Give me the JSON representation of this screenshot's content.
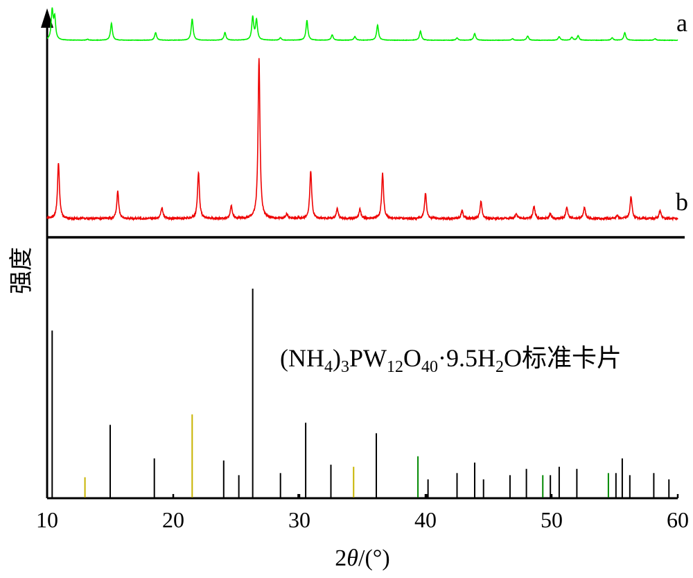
{
  "chart_data": {
    "type": "line",
    "xlabel_parts": [
      "2",
      "θ",
      "/(°)"
    ],
    "ylabel": "强度",
    "xlim": [
      10,
      60
    ],
    "xticks": [
      10,
      20,
      30,
      40,
      50,
      60
    ],
    "series": [
      {
        "name": "a",
        "color": "#00ee00",
        "baseline": 0.05,
        "peaks": [
          [
            10.4,
            0.95
          ],
          [
            10.6,
            0.7
          ],
          [
            13.2,
            0.03
          ],
          [
            15.1,
            0.55
          ],
          [
            18.6,
            0.25
          ],
          [
            21.5,
            0.7
          ],
          [
            24.1,
            0.25
          ],
          [
            26.3,
            0.75
          ],
          [
            26.6,
            0.65
          ],
          [
            28.5,
            0.08
          ],
          [
            30.6,
            0.65
          ],
          [
            32.6,
            0.18
          ],
          [
            34.4,
            0.12
          ],
          [
            36.2,
            0.5
          ],
          [
            39.6,
            0.3
          ],
          [
            42.5,
            0.08
          ],
          [
            43.9,
            0.22
          ],
          [
            46.9,
            0.05
          ],
          [
            48.1,
            0.14
          ],
          [
            50.6,
            0.12
          ],
          [
            51.6,
            0.1
          ],
          [
            52.1,
            0.15
          ],
          [
            54.8,
            0.08
          ],
          [
            55.8,
            0.25
          ],
          [
            58.2,
            0.05
          ]
        ]
      },
      {
        "name": "b",
        "color": "#ee0000",
        "baseline": 0.05,
        "peaks": [
          [
            10.9,
            0.35
          ],
          [
            15.6,
            0.17
          ],
          [
            19.1,
            0.07
          ],
          [
            22.0,
            0.29
          ],
          [
            24.6,
            0.08
          ],
          [
            26.8,
            1.0
          ],
          [
            29.0,
            0.03
          ],
          [
            30.9,
            0.3
          ],
          [
            33.0,
            0.06
          ],
          [
            34.8,
            0.06
          ],
          [
            36.6,
            0.28
          ],
          [
            40.0,
            0.16
          ],
          [
            42.9,
            0.05
          ],
          [
            44.4,
            0.11
          ],
          [
            47.2,
            0.03
          ],
          [
            48.6,
            0.08
          ],
          [
            49.9,
            0.03
          ],
          [
            51.2,
            0.07
          ],
          [
            52.6,
            0.07
          ],
          [
            55.2,
            0.02
          ],
          [
            56.3,
            0.14
          ],
          [
            58.6,
            0.05
          ]
        ]
      }
    ],
    "reference": {
      "label_parts": [
        {
          "t": "(NH",
          "s": 0
        },
        {
          "t": "4",
          "s": -1
        },
        {
          "t": ")",
          "s": 0
        },
        {
          "t": "3",
          "s": -1
        },
        {
          "t": "PW",
          "s": 0
        },
        {
          "t": "12",
          "s": -1
        },
        {
          "t": "O",
          "s": 0
        },
        {
          "t": "40",
          "s": -1
        },
        {
          "t": "·9.5H",
          "s": 0
        },
        {
          "t": "2",
          "s": -1
        },
        {
          "t": "O标准卡片",
          "s": 0
        }
      ],
      "lines": [
        [
          10.4,
          0.8,
          "#000000"
        ],
        [
          13.0,
          0.1,
          "#c8b400"
        ],
        [
          15.0,
          0.35,
          "#000000"
        ],
        [
          18.5,
          0.19,
          "#000000"
        ],
        [
          20.0,
          0.02,
          "#000000"
        ],
        [
          21.5,
          0.4,
          "#c8b400"
        ],
        [
          24.0,
          0.18,
          "#000000"
        ],
        [
          25.2,
          0.11,
          "#000000"
        ],
        [
          26.3,
          1.0,
          "#000000"
        ],
        [
          28.5,
          0.12,
          "#000000"
        ],
        [
          29.9,
          0.02,
          "#000000"
        ],
        [
          30.5,
          0.36,
          "#000000"
        ],
        [
          32.5,
          0.16,
          "#000000"
        ],
        [
          34.3,
          0.15,
          "#c8b400"
        ],
        [
          36.1,
          0.31,
          "#000000"
        ],
        [
          39.4,
          0.2,
          "#008800"
        ],
        [
          40.2,
          0.09,
          "#000000"
        ],
        [
          40.1,
          0.02,
          "#000000"
        ],
        [
          42.5,
          0.12,
          "#000000"
        ],
        [
          43.9,
          0.17,
          "#000000"
        ],
        [
          44.6,
          0.09,
          "#000000"
        ],
        [
          46.7,
          0.11,
          "#000000"
        ],
        [
          48.0,
          0.14,
          "#000000"
        ],
        [
          49.3,
          0.11,
          "#008800"
        ],
        [
          49.9,
          0.11,
          "#000000"
        ],
        [
          50.6,
          0.15,
          "#000000"
        ],
        [
          52.0,
          0.14,
          "#000000"
        ],
        [
          54.5,
          0.12,
          "#008800"
        ],
        [
          55.1,
          0.12,
          "#000000"
        ],
        [
          55.6,
          0.19,
          "#000000"
        ],
        [
          56.2,
          0.11,
          "#000000"
        ],
        [
          58.1,
          0.12,
          "#000000"
        ],
        [
          59.3,
          0.09,
          "#000000"
        ]
      ]
    }
  }
}
